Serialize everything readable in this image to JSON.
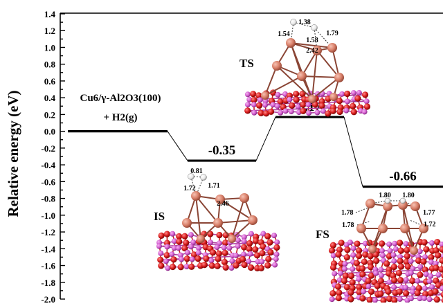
{
  "chart_data": {
    "type": "energy-profile",
    "ylabel": "Relative energy (eV)",
    "ylim": [
      -2.0,
      1.4
    ],
    "ytick_step": 0.1,
    "ytick_labels": [
      "1.4",
      "1.2",
      "1.0",
      "0.8",
      "0.6",
      "0.4",
      "0.2",
      "0.0",
      "-0.2",
      "-0.4",
      "-0.6",
      "-0.8",
      "-1.0",
      "-1.2",
      "-1.4",
      "-1.6",
      "-1.8",
      "-2.0"
    ],
    "reactant_label_line1": "Cu6/γ-Al2O3(100)",
    "reactant_label_line2": "+ H2(g)",
    "levels": [
      {
        "name": "initial",
        "energy": 0.0,
        "value_label": ""
      },
      {
        "name": "IS",
        "energy": -0.35,
        "value_label": "-0.35"
      },
      {
        "name": "TS",
        "energy": 0.17,
        "value_label": "0.17"
      },
      {
        "name": "FS",
        "energy": -0.66,
        "value_label": "-0.66"
      }
    ],
    "structures": [
      {
        "name": "TS",
        "label": "TS",
        "bond_labels": [
          "1.38",
          "1.54",
          "1.79",
          "1.58",
          "2.42"
        ]
      },
      {
        "name": "IS",
        "label": "IS",
        "bond_labels": [
          "0.81",
          "1.72",
          "1.71",
          "2.46"
        ]
      },
      {
        "name": "FS",
        "label": "FS",
        "bond_labels": [
          "1.80",
          "1.80",
          "1.78",
          "1.77",
          "1.78",
          "1.72"
        ]
      }
    ]
  },
  "colors": {
    "copper": "#d9806a",
    "oxygen": "#d81c1c",
    "aluminum": "#d45fd0",
    "hydrogen": "#f2f2f2",
    "line": "#000000"
  }
}
